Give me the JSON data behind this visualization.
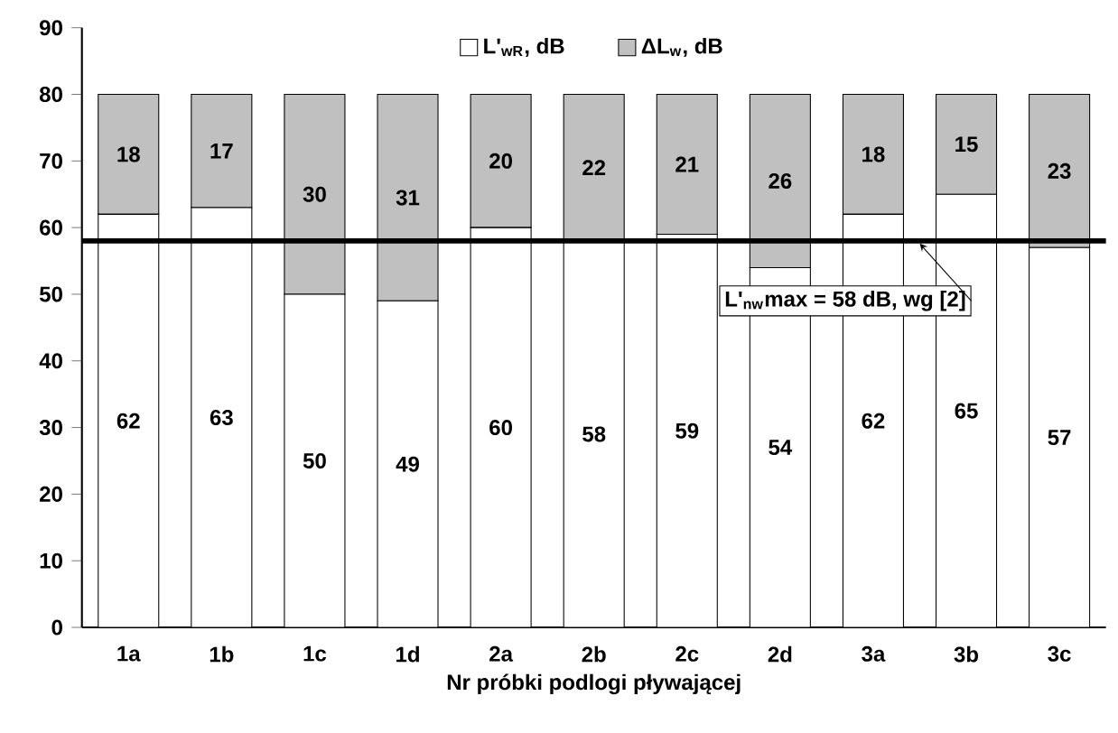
{
  "chart_data": {
    "type": "bar",
    "stacked": true,
    "xlabel": "Nr próbki podlogi pływającej",
    "categories": [
      "1a",
      "1b",
      "1c",
      "1d",
      "2a",
      "2b",
      "2c",
      "2d",
      "3a",
      "3b",
      "3c"
    ],
    "series": [
      {
        "name": "L'$_{wR}$, dB",
        "color": "#ffffff",
        "values": [
          62,
          63,
          50,
          49,
          60,
          58,
          59,
          54,
          62,
          65,
          57
        ]
      },
      {
        "name": "ΔL$_{w}$, dB",
        "color": "#c0c0c0",
        "values": [
          18,
          17,
          30,
          31,
          20,
          22,
          21,
          26,
          18,
          15,
          23
        ]
      }
    ],
    "ylim": [
      0,
      90
    ],
    "yticks": [
      0,
      10,
      20,
      30,
      40,
      50,
      60,
      70,
      80,
      90
    ],
    "data_labels": true,
    "legend": "top",
    "ref_lines": [
      {
        "axis": "y",
        "value": 58,
        "label": "L'$_{nw}$max = 58 dB, wg [2]",
        "color": "#000000"
      }
    ]
  }
}
